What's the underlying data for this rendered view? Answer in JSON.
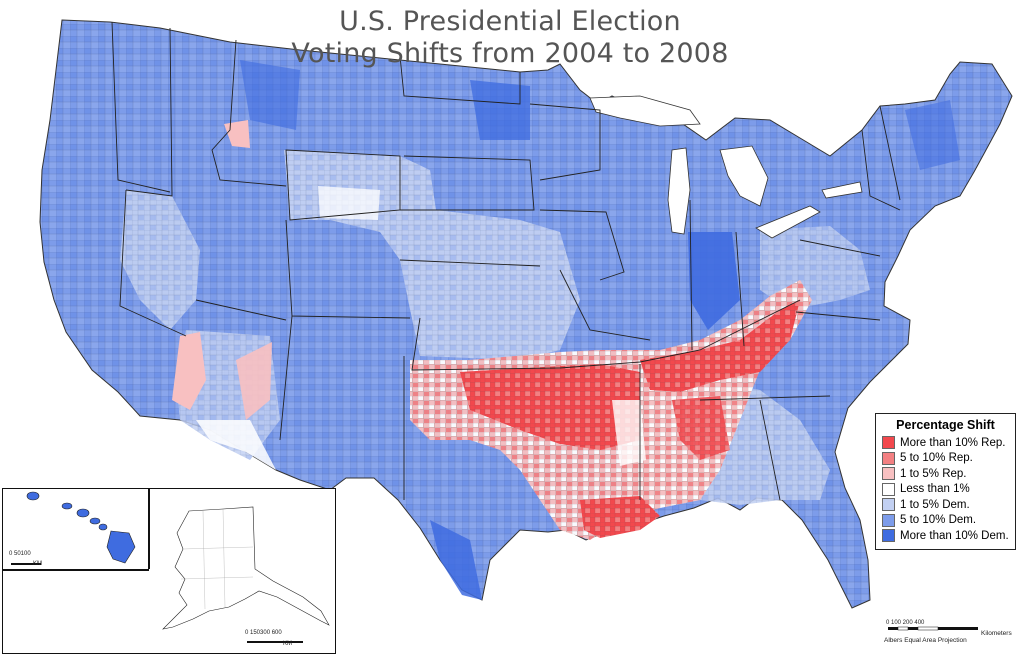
{
  "title_line1": "U.S. Presidential Election",
  "title_line2": "Voting Shifts from 2004 to 2008",
  "legend": {
    "title": "Percentage Shift",
    "items": [
      {
        "label": "More than 10% Rep.",
        "color": "#f2484d"
      },
      {
        "label": "5 to 10% Rep.",
        "color": "#f38082"
      },
      {
        "label": "1 to 5% Rep.",
        "color": "#f8c0c1"
      },
      {
        "label": "Less than 1%",
        "color": "#ffffff"
      },
      {
        "label": "1 to 5% Dem.",
        "color": "#c2d0f2"
      },
      {
        "label": "5 to 10% Dem.",
        "color": "#7d9cea"
      },
      {
        "label": "More than 10% Dem.",
        "color": "#3f6ce0"
      }
    ]
  },
  "hawaii_scale": {
    "ticks": "0   50100",
    "unit": "KM"
  },
  "alaska_scale": {
    "ticks": "0  150300       600",
    "unit": "KM"
  },
  "main_scale": {
    "ticks": "0    100  200              400",
    "unit": "Kilometers"
  },
  "projection": "Albers Equal Area Projection"
}
